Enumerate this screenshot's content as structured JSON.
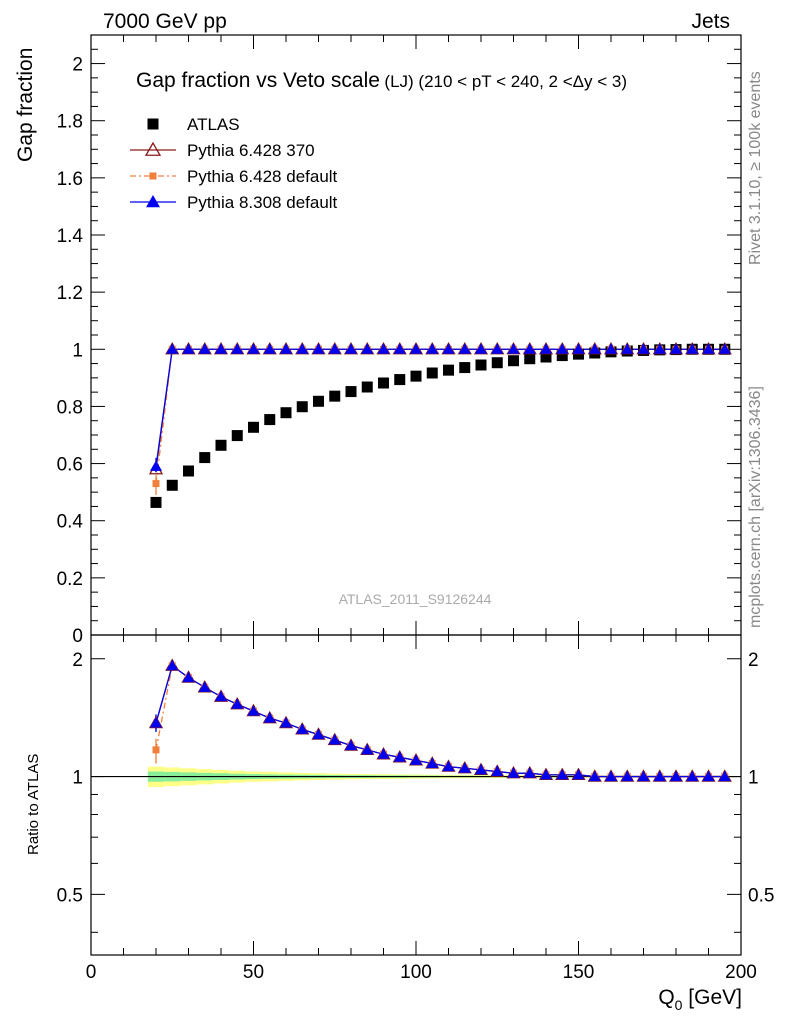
{
  "header": {
    "left": "7000 GeV pp",
    "right": "Jets"
  },
  "side_text": {
    "upper": "Rivet 3.1.10, ≥ 100k events",
    "lower": "mcplots.cern.ch [arXiv:1306.3436]"
  },
  "chart_data": [
    {
      "type": "scatter",
      "title": "Gap fraction vs Veto scale",
      "subtitle": "(LJ) (210 < pT < 240, 2 <Δy < 3)",
      "ylabel": "Gap fraction",
      "watermark": "ATLAS_2011_S9126244",
      "ylim": [
        0,
        2.1
      ],
      "yticks": [
        0,
        0.2,
        0.4,
        0.6,
        0.8,
        1,
        1.2,
        1.4,
        1.6,
        1.8,
        2
      ],
      "ytick_labels": [
        "0",
        "0.2",
        "0.4",
        "0.6",
        "0.8",
        "1",
        "1.2",
        "1.4",
        "1.6",
        "1.8",
        "2"
      ],
      "legend_position": "top-left",
      "x": [
        20,
        25,
        30,
        35,
        40,
        45,
        50,
        55,
        60,
        65,
        70,
        75,
        80,
        85,
        90,
        95,
        100,
        105,
        110,
        115,
        120,
        125,
        130,
        135,
        140,
        145,
        150,
        155,
        160,
        165,
        170,
        175,
        180,
        185,
        190,
        195
      ],
      "series": [
        {
          "name": "ATLAS",
          "color": "#000000",
          "marker": "square",
          "values": [
            0.464,
            0.524,
            0.574,
            0.621,
            0.664,
            0.698,
            0.727,
            0.754,
            0.778,
            0.799,
            0.818,
            0.836,
            0.852,
            0.868,
            0.882,
            0.894,
            0.906,
            0.917,
            0.927,
            0.936,
            0.945,
            0.953,
            0.96,
            0.967,
            0.973,
            0.978,
            0.983,
            0.987,
            0.991,
            0.994,
            0.996,
            0.998,
            0.999,
            1.0,
            1.0,
            1.0
          ]
        },
        {
          "name": "Pythia 6.428 370",
          "color": "#8b1a1a",
          "marker": "open-triangle",
          "values": [
            0.58,
            1.0,
            1.0,
            1.0,
            1.0,
            1.0,
            1.0,
            1.0,
            1.0,
            1.0,
            1.0,
            1.0,
            1.0,
            1.0,
            1.0,
            1.0,
            1.0,
            1.0,
            1.0,
            1.0,
            1.0,
            1.0,
            1.0,
            1.0,
            1.0,
            1.0,
            1.0,
            1.0,
            1.0,
            1.0,
            1.0,
            1.0,
            1.0,
            1.0,
            1.0,
            1.0
          ]
        },
        {
          "name": "Pythia 6.428 default",
          "color": "#ef7f3b",
          "marker": "small-square",
          "values": [
            0.53,
            1.0,
            1.0,
            1.0,
            1.0,
            1.0,
            1.0,
            1.0,
            1.0,
            1.0,
            1.0,
            1.0,
            1.0,
            1.0,
            1.0,
            1.0,
            1.0,
            1.0,
            1.0,
            1.0,
            1.0,
            1.0,
            1.0,
            1.0,
            1.0,
            1.0,
            1.0,
            1.0,
            1.0,
            1.0,
            1.0,
            1.0,
            1.0,
            1.0,
            1.0,
            1.0
          ]
        },
        {
          "name": "Pythia 8.308 default",
          "color": "#0000ee",
          "marker": "filled-triangle",
          "values": [
            0.59,
            1.0,
            1.0,
            1.0,
            1.0,
            1.0,
            1.0,
            1.0,
            1.0,
            1.0,
            1.0,
            1.0,
            1.0,
            1.0,
            1.0,
            1.0,
            1.0,
            1.0,
            1.0,
            1.0,
            1.0,
            1.0,
            1.0,
            1.0,
            1.0,
            1.0,
            1.0,
            1.0,
            1.0,
            1.0,
            1.0,
            1.0,
            1.0,
            1.0,
            1.0,
            1.0
          ]
        }
      ]
    },
    {
      "type": "line",
      "ylabel": "Ratio to ATLAS",
      "xlabel": "Q",
      "xlabel_sub": "0",
      "xlabel_unit": " [GeV]",
      "xlim": [
        0,
        200
      ],
      "ylim": [
        0.35,
        2.3
      ],
      "xticks": [
        0,
        50,
        100,
        150,
        200
      ],
      "xtick_labels": [
        "0",
        "50",
        "100",
        "150",
        "200"
      ],
      "yticks": [
        0.5,
        1,
        2
      ],
      "ytick_labels": [
        "0.5",
        "1",
        "2"
      ],
      "band_colors": [
        "#ffff88",
        "#88ee99"
      ],
      "band_outer_halfwidth": [
        0.06,
        0.055,
        0.05,
        0.045,
        0.04,
        0.035,
        0.03,
        0.028,
        0.025,
        0.022,
        0.02,
        0.018,
        0.016,
        0.015,
        0.014,
        0.013,
        0.012,
        0.011,
        0.01,
        0.01,
        0.009,
        0.009,
        0.008,
        0.008,
        0.008,
        0.007,
        0.007,
        0.007,
        0.006,
        0.006,
        0.006,
        0.006,
        0.005,
        0.005,
        0.005,
        0.005
      ],
      "band_inner_halfwidth": [
        0.03,
        0.028,
        0.025,
        0.022,
        0.02,
        0.017,
        0.015,
        0.013,
        0.012,
        0.011,
        0.01,
        0.009,
        0.008,
        0.008,
        0.007,
        0.007,
        0.006,
        0.006,
        0.005,
        0.005,
        0.005,
        0.004,
        0.004,
        0.004,
        0.004,
        0.004,
        0.003,
        0.003,
        0.003,
        0.003,
        0.003,
        0.003,
        0.003,
        0.003,
        0.003,
        0.003
      ],
      "series": [
        {
          "name": "Pythia 6.428 370",
          "color": "#8b1a1a",
          "values": [
            1.37,
            1.92,
            1.79,
            1.69,
            1.6,
            1.53,
            1.47,
            1.41,
            1.37,
            1.32,
            1.28,
            1.24,
            1.2,
            1.17,
            1.14,
            1.12,
            1.1,
            1.08,
            1.06,
            1.05,
            1.04,
            1.03,
            1.02,
            1.02,
            1.01,
            1.01,
            1.01,
            1.0,
            1.0,
            1.0,
            1.0,
            1.0,
            1.0,
            1.0,
            1.0,
            1.0
          ]
        },
        {
          "name": "Pythia 6.428 default",
          "color": "#ef7f3b",
          "values": [
            1.17,
            1.92,
            1.79,
            1.69,
            1.6,
            1.53,
            1.47,
            1.41,
            1.37,
            1.32,
            1.28,
            1.24,
            1.2,
            1.17,
            1.14,
            1.12,
            1.1,
            1.08,
            1.06,
            1.05,
            1.04,
            1.03,
            1.02,
            1.02,
            1.01,
            1.01,
            1.01,
            1.0,
            1.0,
            1.0,
            1.0,
            1.0,
            1.0,
            1.0,
            1.0,
            1.0
          ]
        },
        {
          "name": "Pythia 8.308 default",
          "color": "#0000ee",
          "values": [
            1.37,
            1.92,
            1.79,
            1.69,
            1.6,
            1.53,
            1.47,
            1.41,
            1.37,
            1.32,
            1.28,
            1.24,
            1.2,
            1.17,
            1.14,
            1.12,
            1.1,
            1.08,
            1.06,
            1.05,
            1.04,
            1.03,
            1.02,
            1.02,
            1.01,
            1.01,
            1.01,
            1.0,
            1.0,
            1.0,
            1.0,
            1.0,
            1.0,
            1.0,
            1.0,
            1.0
          ]
        }
      ]
    }
  ]
}
